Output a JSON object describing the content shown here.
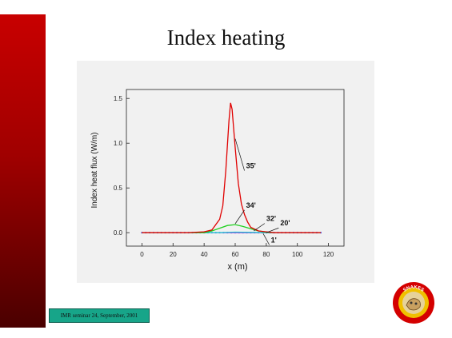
{
  "slide": {
    "title": "Index heating",
    "footer": "IMR seminar 24, September, 2001",
    "accent_color": "#c80000",
    "footer_color": "#17a589",
    "logo_icon": "institution-seal-icon",
    "logo_text": "SNAKES"
  },
  "chart_data": {
    "type": "line",
    "xlabel": "x (m)",
    "ylabel": "Index heat flux (W/m)",
    "xlim": [
      -10,
      130
    ],
    "ylim": [
      -0.15,
      1.6
    ],
    "xticks": [
      0,
      20,
      40,
      60,
      80,
      100,
      120
    ],
    "yticks": [
      0.0,
      0.5,
      1.0,
      1.5
    ],
    "grid": false,
    "series": [
      {
        "name": "35'",
        "color": "#e00000",
        "x": [
          0,
          30,
          40,
          45,
          50,
          52,
          54,
          56,
          57,
          58,
          60,
          62,
          64,
          66,
          68,
          70,
          75,
          80,
          85,
          90,
          115
        ],
        "values": [
          0,
          0,
          0.01,
          0.03,
          0.15,
          0.3,
          0.7,
          1.25,
          1.45,
          1.38,
          0.95,
          0.55,
          0.32,
          0.2,
          0.12,
          0.06,
          0.02,
          0.01,
          0,
          0,
          0
        ]
      },
      {
        "name": "34'",
        "color": "#20d020",
        "x": [
          0,
          40,
          45,
          50,
          55,
          60,
          65,
          70,
          75,
          80,
          85,
          115
        ],
        "values": [
          0,
          0,
          0.02,
          0.05,
          0.08,
          0.09,
          0.07,
          0.045,
          0.02,
          0.005,
          0,
          0
        ]
      },
      {
        "name": "32'",
        "color": "#20d0d0",
        "x": [
          0,
          50,
          60,
          70,
          80,
          115
        ],
        "values": [
          0,
          0,
          0.006,
          0.004,
          0,
          0
        ]
      },
      {
        "name": "20'",
        "color": "#e020e0",
        "x": [
          0,
          115
        ],
        "values": [
          0,
          0
        ]
      },
      {
        "name": "1'",
        "color": "#2020e0",
        "x": [
          0,
          115
        ],
        "values": [
          0,
          0
        ],
        "markers": true
      }
    ],
    "annotations": [
      {
        "text": "35'",
        "x": 67,
        "y": 0.72,
        "target_x": 60,
        "target_y": 1.05
      },
      {
        "text": "34'",
        "x": 67,
        "y": 0.28,
        "target_x": 60,
        "target_y": 0.1
      },
      {
        "text": "32'",
        "x": 80,
        "y": 0.13,
        "target_x": 72,
        "target_y": 0.02
      },
      {
        "text": "20'",
        "x": 89,
        "y": 0.08,
        "target_x": 80,
        "target_y": 0.0
      },
      {
        "text": "1'",
        "x": 83,
        "y": -0.11,
        "target_x": 78,
        "target_y": -0.01
      }
    ]
  }
}
